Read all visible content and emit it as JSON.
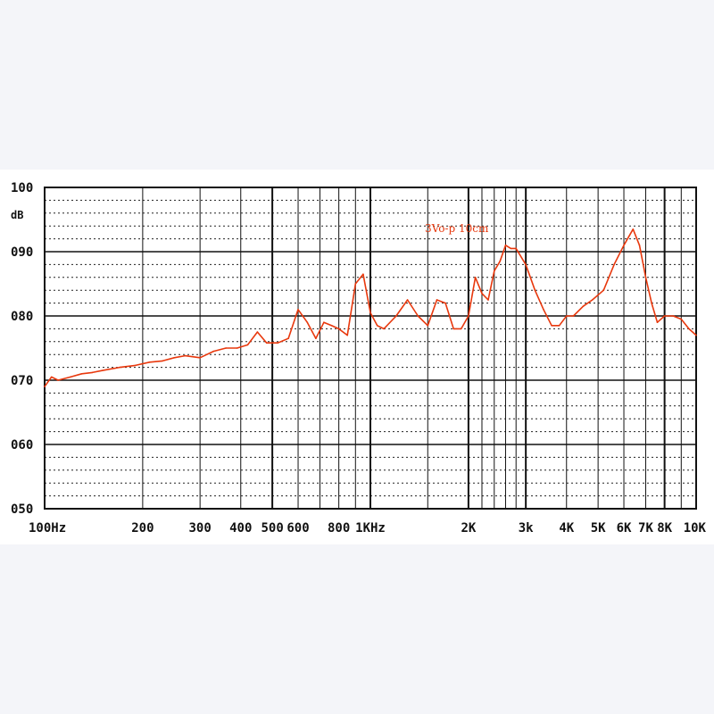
{
  "chart_data": {
    "type": "line",
    "title": "",
    "ylabel": "dB",
    "xlabel": "",
    "x_scale": "log",
    "xlim": [
      100,
      10000
    ],
    "ylim": [
      50,
      100
    ],
    "y_ticks": [
      {
        "value": 100,
        "label": "100"
      },
      {
        "value": 90,
        "label": "090"
      },
      {
        "value": 80,
        "label": "080"
      },
      {
        "value": 70,
        "label": "070"
      },
      {
        "value": 60,
        "label": "060"
      },
      {
        "value": 50,
        "label": "050"
      }
    ],
    "x_ticks": [
      {
        "value": 100,
        "label": "100Hz"
      },
      {
        "value": 200,
        "label": "200"
      },
      {
        "value": 300,
        "label": "300"
      },
      {
        "value": 400,
        "label": "400"
      },
      {
        "value": 500,
        "label": "500"
      },
      {
        "value": 600,
        "label": "600"
      },
      {
        "value": 800,
        "label": "800"
      },
      {
        "value": 1000,
        "label": "1KHz"
      },
      {
        "value": 2000,
        "label": "2K"
      },
      {
        "value": 3000,
        "label": "3k"
      },
      {
        "value": 4000,
        "label": "4K"
      },
      {
        "value": 5000,
        "label": "5K"
      },
      {
        "value": 6000,
        "label": "6K"
      },
      {
        "value": 7000,
        "label": "7K"
      },
      {
        "value": 8000,
        "label": "8K"
      },
      {
        "value": 10000,
        "label": "10K"
      }
    ],
    "grid": true,
    "annotation": "3Vo-p 10cm",
    "series": [
      {
        "color": "#e8380d",
        "x": [
          100,
          105,
          110,
          120,
          130,
          140,
          150,
          170,
          190,
          210,
          230,
          250,
          270,
          300,
          330,
          360,
          390,
          420,
          450,
          480,
          520,
          560,
          600,
          640,
          680,
          720,
          760,
          800,
          850,
          900,
          950,
          1000,
          1050,
          1100,
          1200,
          1300,
          1400,
          1500,
          1600,
          1700,
          1800,
          1900,
          2000,
          2100,
          2200,
          2300,
          2400,
          2500,
          2600,
          2700,
          2800,
          3000,
          3200,
          3400,
          3600,
          3800,
          4000,
          4200,
          4500,
          4800,
          5200,
          5600,
          6000,
          6400,
          6700,
          7000,
          7300,
          7600,
          8000,
          8500,
          9000,
          9500,
          10000
        ],
        "y": [
          69.0,
          70.5,
          70.0,
          70.5,
          71.0,
          71.2,
          71.5,
          72.0,
          72.3,
          72.8,
          73.0,
          73.5,
          73.8,
          73.5,
          74.5,
          75.0,
          75.0,
          75.5,
          77.5,
          75.8,
          75.8,
          76.5,
          81.0,
          79.0,
          76.5,
          79.0,
          78.5,
          78.0,
          77.0,
          85.0,
          86.5,
          80.5,
          78.5,
          78.0,
          80.0,
          82.5,
          80.0,
          78.5,
          82.5,
          82.0,
          78.0,
          78.0,
          80.0,
          86.0,
          83.5,
          82.5,
          87.0,
          88.5,
          91.0,
          90.5,
          90.5,
          88.0,
          84.0,
          81.0,
          78.5,
          78.5,
          80.0,
          80.0,
          81.5,
          82.5,
          84.0,
          88.0,
          91.0,
          93.5,
          91.0,
          86.0,
          82.0,
          79.0,
          80.0,
          80.0,
          79.5,
          78.0,
          77.0
        ]
      }
    ]
  }
}
